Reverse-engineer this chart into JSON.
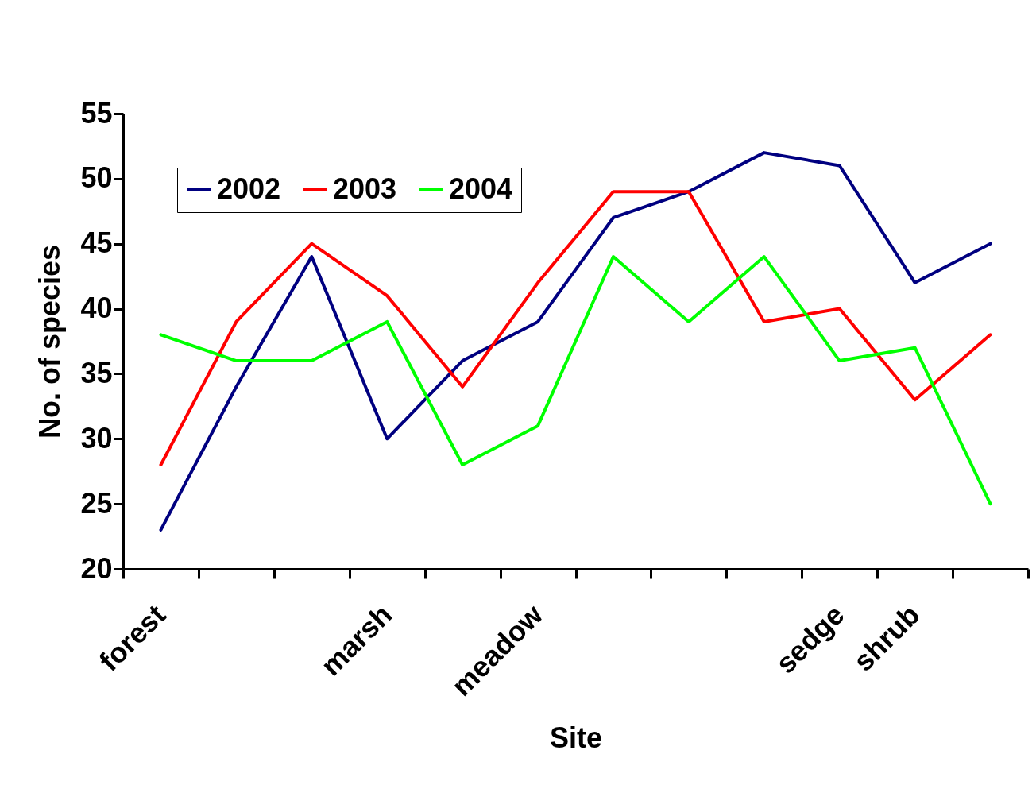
{
  "chart_data": {
    "type": "line",
    "xlabel": "Site",
    "ylabel": "No. of species",
    "categories": [
      "forest",
      null,
      null,
      "marsh",
      null,
      "meadow",
      null,
      null,
      null,
      "sedge",
      "shrub",
      null
    ],
    "series": [
      {
        "name": "2002",
        "color": "#000080",
        "values": [
          23,
          34,
          44,
          30,
          36,
          39,
          47,
          49,
          52,
          51,
          42,
          45
        ]
      },
      {
        "name": "2003",
        "color": "#ff0000",
        "values": [
          28,
          39,
          45,
          41,
          34,
          42,
          49,
          49,
          39,
          40,
          33,
          38
        ]
      },
      {
        "name": "2004",
        "color": "#00ff00",
        "values": [
          38,
          36,
          36,
          39,
          28,
          31,
          44,
          39,
          44,
          36,
          37,
          25
        ]
      }
    ],
    "ylim": [
      20,
      55
    ],
    "yticks": [
      20,
      25,
      30,
      35,
      40,
      45,
      50,
      55
    ],
    "grid": false,
    "legend": "top left",
    "marker": "none",
    "line_style": "solid"
  }
}
